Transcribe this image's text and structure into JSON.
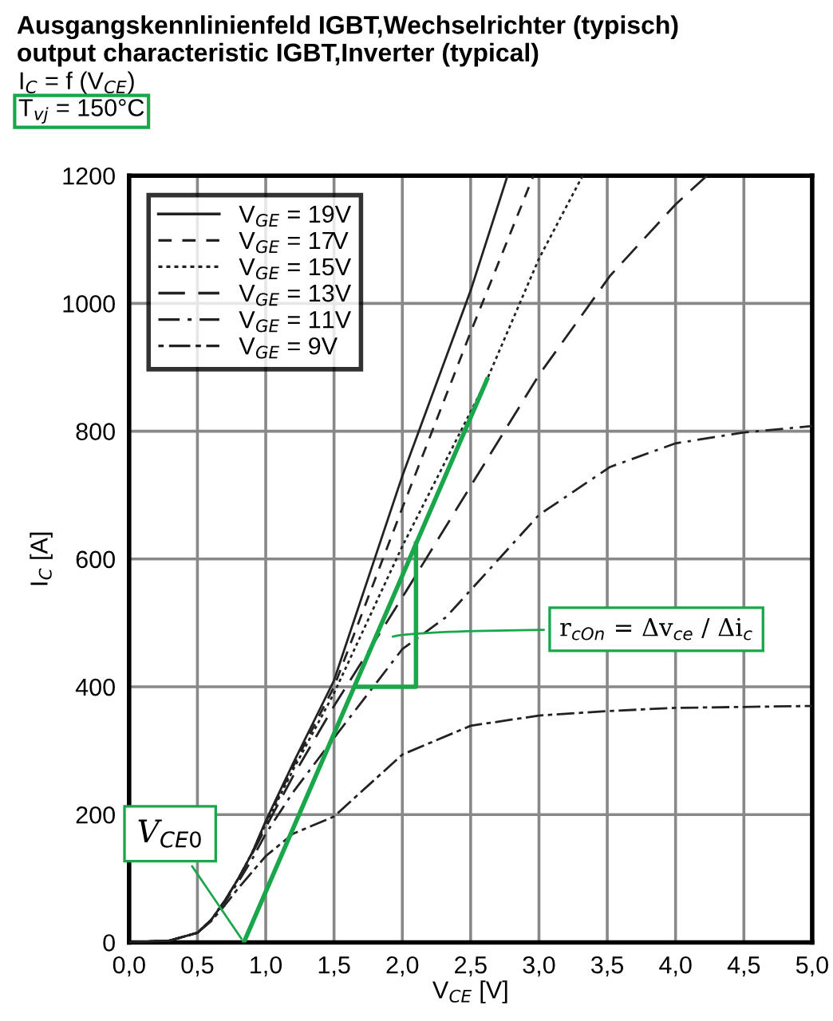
{
  "chart_data": {
    "type": "line",
    "title": "Ausgangskennlinienfeld IGBT,Wechselrichter (typisch)",
    "subtitle": "output characteristic IGBT,Inverter (typical)",
    "xlabel": "V$_{CE}$ [V]",
    "ylabel": "I$_{C}$ [A]",
    "annotations": [
      "I$_{C}$ = f (V$_{CE}$)",
      "T$_{vj}$ = 150°C",
      "r$_{cOn}$ = Δv$_{ce}$ / Δi$_{c}$",
      {
        "text": "V$_{CE0}$",
        "x": 0.84,
        "y": 0
      }
    ],
    "series": [
      {
        "name": "V$_{GE}$ = 19V",
        "color": "#222222",
        "line_style": "solid",
        "x": [
          0,
          0.3,
          0.5,
          0.6,
          0.7,
          0.8,
          0.9,
          1.0,
          1.2,
          1.5,
          2.0,
          2.5,
          2.77
        ],
        "values": [
          0,
          3,
          15,
          35,
          65,
          100,
          140,
          190,
          280,
          410,
          730,
          1020,
          1200
        ]
      },
      {
        "name": "V$_{GE}$ = 17V",
        "color": "#222222",
        "line_style": "dashed",
        "x": [
          0,
          0.3,
          0.5,
          0.6,
          0.7,
          0.8,
          0.9,
          1.0,
          1.2,
          1.5,
          2.0,
          2.5,
          2.96
        ],
        "values": [
          0,
          3,
          15,
          35,
          65,
          100,
          140,
          188,
          275,
          400,
          680,
          955,
          1200
        ]
      },
      {
        "name": "V$_{GE}$ = 15V",
        "color": "#222222",
        "line_style": "dotted",
        "x": [
          0,
          0.3,
          0.5,
          0.6,
          0.7,
          0.8,
          0.9,
          1.0,
          1.2,
          1.5,
          2.0,
          2.62,
          3.0,
          3.32
        ],
        "values": [
          0,
          3,
          15,
          35,
          65,
          100,
          140,
          185,
          270,
          390,
          620,
          881,
          1070,
          1200
        ]
      },
      {
        "name": "V$_{GE}$ = 13V",
        "color": "#222222",
        "line_style": "longdash",
        "x": [
          0,
          0.3,
          0.5,
          0.6,
          0.7,
          0.8,
          0.9,
          1.0,
          1.2,
          1.5,
          2.0,
          2.5,
          3.0,
          3.52,
          4.0,
          4.23
        ],
        "values": [
          0,
          3,
          15,
          35,
          65,
          100,
          138,
          180,
          260,
          370,
          540,
          714,
          888,
          1043,
          1155,
          1200
        ]
      },
      {
        "name": "V$_{GE}$ = 11V",
        "color": "#222222",
        "line_style": "dashdot",
        "x": [
          0,
          0.3,
          0.5,
          0.6,
          0.7,
          0.8,
          0.9,
          1.0,
          1.2,
          1.5,
          2.0,
          2.32,
          3.0,
          3.52,
          4.0,
          4.5,
          5.0
        ],
        "values": [
          0,
          3,
          15,
          35,
          63,
          95,
          130,
          170,
          235,
          320,
          459,
          509,
          669,
          744,
          781,
          798,
          808
        ]
      },
      {
        "name": "V$_{GE}$ = 9V",
        "color": "#222222",
        "line_style": "dashdotdot",
        "x": [
          0,
          0.3,
          0.5,
          0.6,
          0.7,
          0.8,
          0.9,
          1.0,
          1.2,
          1.5,
          2.0,
          2.5,
          3.0,
          3.5,
          4.0,
          5.0
        ],
        "values": [
          0,
          3,
          15,
          33,
          58,
          85,
          110,
          135,
          170,
          197,
          294,
          339,
          355,
          362,
          367,
          370
        ]
      },
      {
        "color": "#1aa64a",
        "line_style": "solid",
        "x": [
          0.84,
          2.62
        ],
        "values": [
          0,
          881
        ]
      },
      {
        "color": "#1aa64a",
        "line_style": "solid",
        "x": [
          1.66,
          2.1,
          2.1
        ],
        "values": [
          400,
          400,
          624
        ]
      }
    ],
    "xlim": [
      0,
      5
    ],
    "ylim": [
      0,
      1200
    ],
    "xticks": [
      {
        "value": 0,
        "label": "0,0"
      },
      {
        "value": 0.5,
        "label": "0,5"
      },
      {
        "value": 1,
        "label": "1,0"
      },
      {
        "value": 1.5,
        "label": "1,5"
      },
      {
        "value": 2,
        "label": "2,0"
      },
      {
        "value": 2.5,
        "label": "2,5"
      },
      {
        "value": 3,
        "label": "3,0"
      },
      {
        "value": 3.5,
        "label": "3,5"
      },
      {
        "value": 4,
        "label": "4,0"
      },
      {
        "value": 4.5,
        "label": "4,5"
      },
      {
        "value": 5,
        "label": "5,0"
      }
    ],
    "yticks": [
      0,
      200,
      400,
      600,
      800,
      1000,
      1200
    ],
    "grid": true,
    "legend": "top left"
  }
}
